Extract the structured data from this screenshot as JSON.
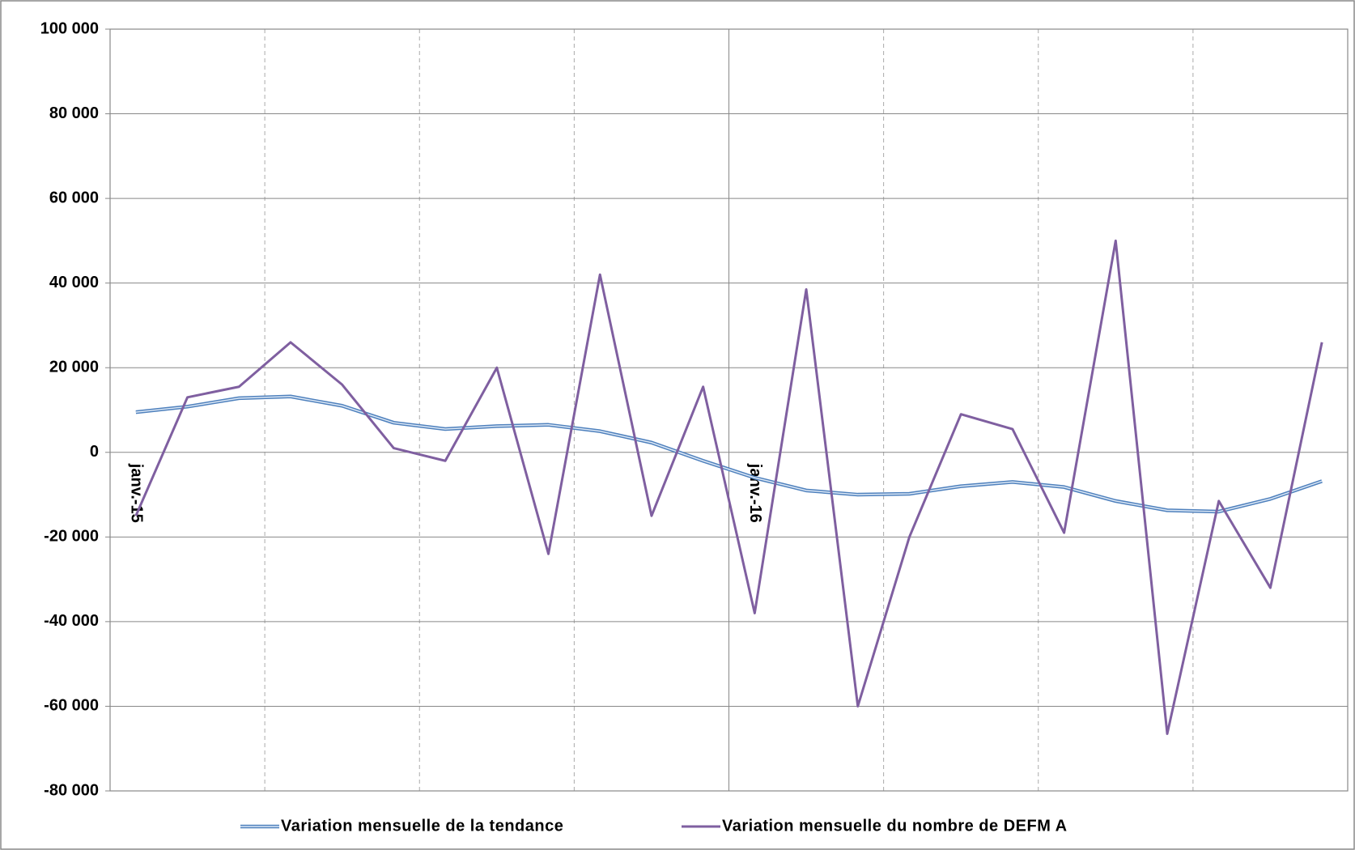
{
  "chart_data": {
    "type": "line",
    "categories": [
      "janv.-15",
      null,
      null,
      null,
      null,
      null,
      null,
      null,
      null,
      null,
      null,
      null,
      "janv.-16",
      null,
      null,
      null,
      null,
      null,
      null,
      null,
      null,
      null,
      null,
      null
    ],
    "series": [
      {
        "name": "Variation mensuelle de la tendance",
        "color": "#4f81bd",
        "values": [
          9500,
          10800,
          12800,
          13200,
          11000,
          7000,
          5500,
          6200,
          6500,
          5000,
          2300,
          -2000,
          -6000,
          -9000,
          -10000,
          -9800,
          -8000,
          -7000,
          -8200,
          -11500,
          -13700,
          -14000,
          -11000,
          -6800
        ]
      },
      {
        "name": "Variation mensuelle du nombre de DEFM A",
        "color": "#7f5fa0",
        "values": [
          -15000,
          13000,
          15500,
          26000,
          16000,
          1000,
          -2000,
          20000,
          -24000,
          42000,
          -15000,
          15500,
          -38000,
          38500,
          -60000,
          -20000,
          9000,
          5500,
          -19000,
          50000,
          -66500,
          -11500,
          -32000,
          26000
        ]
      }
    ],
    "ylim": [
      -80000,
      100000
    ],
    "yticks": [
      {
        "value": -80000,
        "label": "-80 000"
      },
      {
        "value": -60000,
        "label": "-60 000"
      },
      {
        "value": -40000,
        "label": "-40 000"
      },
      {
        "value": -20000,
        "label": "-20 000"
      },
      0,
      {
        "value": 20000,
        "label": "20 000"
      },
      {
        "value": 40000,
        "label": "40 000"
      },
      {
        "value": 60000,
        "label": "60 000"
      },
      {
        "value": 80000,
        "label": "80 000"
      },
      {
        "value": 100000,
        "label": "100 000"
      }
    ],
    "grid": true,
    "legend": "bottom"
  }
}
